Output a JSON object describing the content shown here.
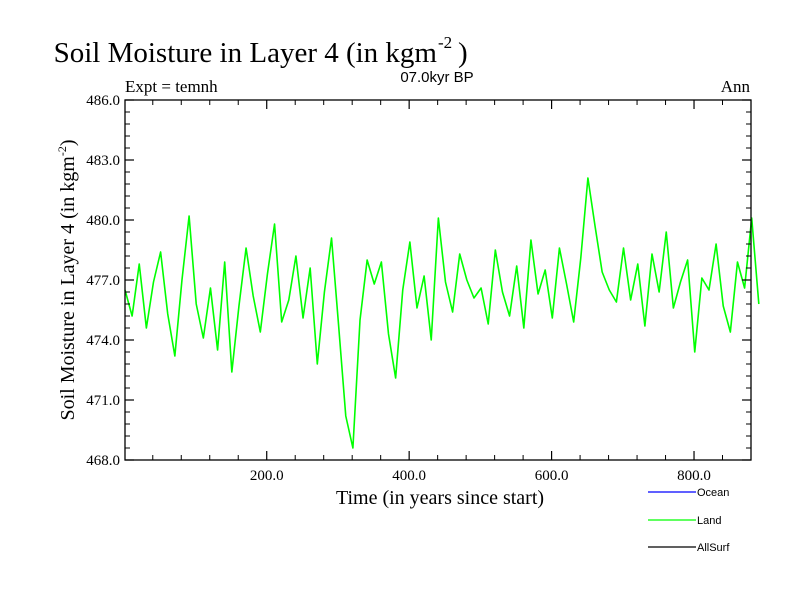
{
  "chart_data": {
    "type": "line",
    "title": "Soil Moisture in Layer 4 (in kgm",
    "title_superscript": "-2",
    "title_close": ")",
    "subtitle": "07.0kyr BP",
    "left_label": "Expt = temnh",
    "right_label": "Ann",
    "xlabel": "Time (in years since start)",
    "ylabel": "Soil Moisture in Layer 4 (in kgm",
    "ylabel_superscript": "-2",
    "ylabel_close": ")",
    "xlim": [
      1,
      880
    ],
    "ylim": [
      468.0,
      486.0
    ],
    "x_ticks": [
      200,
      400,
      600,
      800
    ],
    "x_tick_labels": [
      "200.0",
      "400.0",
      "600.0",
      "800.0"
    ],
    "y_ticks": [
      468,
      471,
      474,
      477,
      480,
      483,
      486
    ],
    "y_tick_labels": [
      "468.0",
      "471.0",
      "474.0",
      "477.0",
      "480.0",
      "483.0",
      "486.0"
    ],
    "legend": [
      {
        "name": "Ocean",
        "color": "#0000ff"
      },
      {
        "name": "Land",
        "color": "#00ff00"
      },
      {
        "name": "AllSurf",
        "color": "#000000"
      }
    ],
    "series": [
      {
        "name": "Land",
        "color": "#00ff00",
        "x_start": 1,
        "x_step": 10,
        "values": [
          476.5,
          475.2,
          477.8,
          474.6,
          476.9,
          478.4,
          475.3,
          473.2,
          477.0,
          480.2,
          475.8,
          474.1,
          476.6,
          473.5,
          477.9,
          472.4,
          475.7,
          478.6,
          476.2,
          474.4,
          477.3,
          479.8,
          474.9,
          476.0,
          478.2,
          475.1,
          477.6,
          472.8,
          476.4,
          479.1,
          474.7,
          470.2,
          468.6,
          475.0,
          478.0,
          476.8,
          477.9,
          474.3,
          472.1,
          476.5,
          478.9,
          475.6,
          477.2,
          474.0,
          480.1,
          476.9,
          475.4,
          478.3,
          477.0,
          476.1,
          476.6,
          474.8,
          478.5,
          476.4,
          475.2,
          477.7,
          474.6,
          479.0,
          476.3,
          477.5,
          475.1,
          478.6,
          476.8,
          474.9,
          478.1,
          482.1,
          479.7,
          477.4,
          476.5,
          475.9,
          478.6,
          476.0,
          477.8,
          474.7,
          478.3,
          476.4,
          479.4,
          475.6,
          476.9,
          478.0,
          473.4,
          477.1,
          476.5,
          478.8,
          475.7,
          474.4,
          477.9,
          476.6,
          480.1,
          475.8
        ]
      },
      {
        "name": "Ocean",
        "color": "#0000ff",
        "values": []
      },
      {
        "name": "AllSurf",
        "color": "#000000",
        "values": []
      }
    ]
  }
}
